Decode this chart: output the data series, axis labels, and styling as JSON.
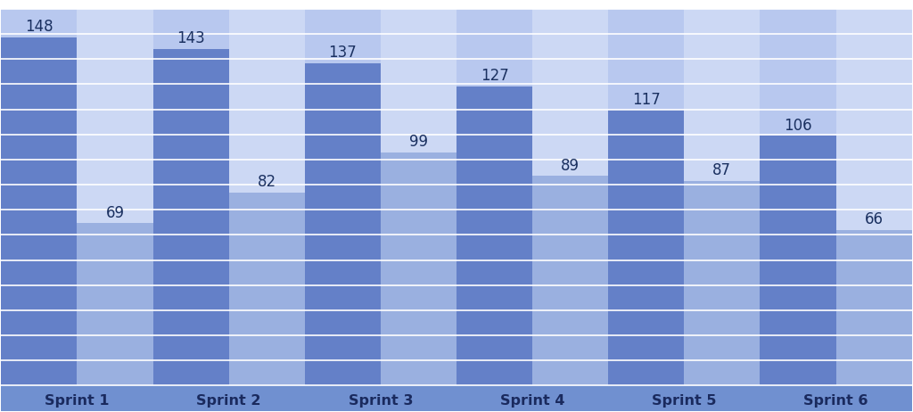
{
  "sprints": [
    "Sprint 1",
    "Sprint 2",
    "Sprint 3",
    "Sprint 4",
    "Sprint 5",
    "Sprint 6"
  ],
  "values_dark": [
    148,
    143,
    137,
    127,
    117,
    106
  ],
  "values_light": [
    69,
    82,
    99,
    89,
    87,
    66
  ],
  "color_dark": "#6480c8",
  "color_light": "#9ab0e0",
  "color_bg_dark": "#b8c8ef",
  "color_bg_light": "#ccd8f4",
  "color_label_row": "#7090d0",
  "color_white": "#ffffff",
  "color_grid_line": "#c0cce8",
  "text_color_label": "#1a2a5e",
  "text_color_value": "#1a3060",
  "num_rows": 15,
  "max_value": 160,
  "label_fontsize": 11.5,
  "value_fontsize": 12
}
